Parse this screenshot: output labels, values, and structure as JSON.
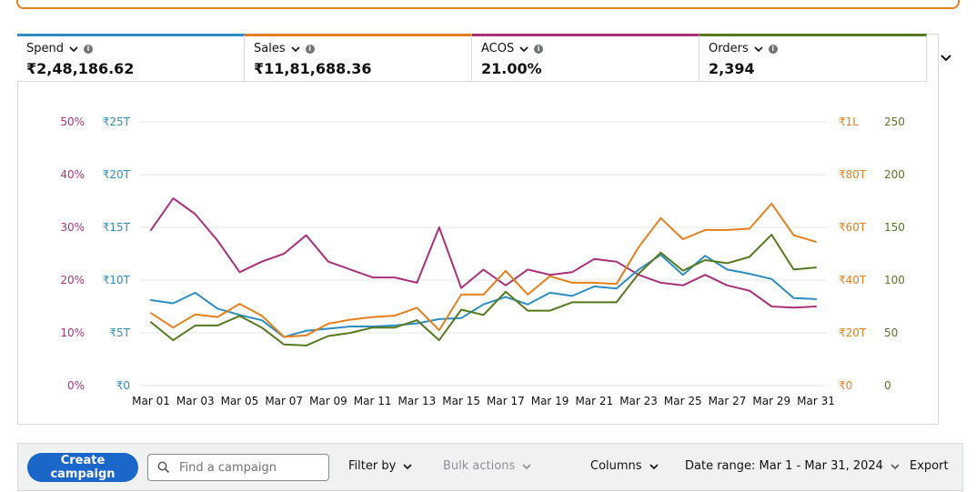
{
  "metrics": [
    {
      "label": "Spend",
      "value": "₹2,48,186.62",
      "color": "#2e8cbf"
    },
    {
      "label": "Sales",
      "value": "₹11,81,688.36",
      "color": "#e37f1e"
    },
    {
      "label": "ACOS",
      "value": "21.00%",
      "color": "#a9317a"
    },
    {
      "label": "Orders",
      "value": "2,394",
      "color": "#56781f"
    }
  ],
  "chart_data": {
    "type": "line",
    "x": [
      "Mar 01",
      "Mar 02",
      "Mar 03",
      "Mar 04",
      "Mar 05",
      "Mar 06",
      "Mar 07",
      "Mar 08",
      "Mar 09",
      "Mar 10",
      "Mar 11",
      "Mar 12",
      "Mar 13",
      "Mar 14",
      "Mar 15",
      "Mar 16",
      "Mar 17",
      "Mar 18",
      "Mar 19",
      "Mar 20",
      "Mar 21",
      "Mar 22",
      "Mar 23",
      "Mar 24",
      "Mar 25",
      "Mar 26",
      "Mar 27",
      "Mar 28",
      "Mar 29",
      "Mar 30",
      "Mar 31"
    ],
    "x_tick_labels": [
      "Mar 01",
      "Mar 03",
      "Mar 05",
      "Mar 07",
      "Mar 09",
      "Mar 11",
      "Mar 13",
      "Mar 15",
      "Mar 17",
      "Mar 19",
      "Mar 21",
      "Mar 23",
      "Mar 25",
      "Mar 27",
      "Mar 29",
      "Mar 31"
    ],
    "axes": {
      "acos": {
        "ticks": [
          "0%",
          "10%",
          "20%",
          "30%",
          "40%",
          "50%"
        ],
        "range": [
          0,
          50
        ],
        "color": "#a9317a"
      },
      "spend": {
        "ticks": [
          "₹0",
          "₹5T",
          "₹10T",
          "₹15T",
          "₹20T",
          "₹25T"
        ],
        "range": [
          0,
          25
        ],
        "color": "#2e8cbf"
      },
      "sales": {
        "ticks": [
          "₹0",
          "₹20T",
          "₹40T",
          "₹60T",
          "₹80T",
          "₹1L"
        ],
        "range": [
          0,
          100
        ],
        "color": "#e37f1e"
      },
      "orders": {
        "ticks": [
          "0",
          "50",
          "100",
          "150",
          "200",
          "250"
        ],
        "range": [
          0,
          250
        ],
        "color": "#56781f"
      }
    },
    "series": [
      {
        "name": "ACOS",
        "axis": "acos",
        "color": "#a9317a",
        "values": [
          29.5,
          35.5,
          32.5,
          27.5,
          21.5,
          23.5,
          25,
          28.5,
          23.5,
          22,
          20.5,
          20.5,
          19.5,
          30,
          18.5,
          22,
          19,
          22,
          21,
          21.5,
          24,
          23.5,
          21,
          19.5,
          19,
          21,
          19,
          18,
          15,
          14.8,
          15
        ]
      },
      {
        "name": "Spend",
        "axis": "spend",
        "color": "#2e8cbf",
        "values": [
          8.1,
          7.8,
          8.8,
          7.3,
          6.7,
          6.2,
          4.6,
          5.2,
          5.4,
          5.6,
          5.6,
          5.7,
          5.9,
          6.3,
          6.4,
          7.7,
          8.4,
          7.7,
          8.8,
          8.5,
          9.4,
          9.2,
          11.0,
          12.4,
          10.5,
          12.3,
          11.0,
          10.6,
          10.1,
          8.3,
          8.2
        ]
      },
      {
        "name": "Sales",
        "axis": "sales",
        "color": "#e37f1e",
        "values": [
          27.5,
          22,
          27,
          26,
          31,
          26.5,
          18.5,
          19,
          23.5,
          25,
          26,
          26.5,
          29.5,
          21,
          34.5,
          34.5,
          43.5,
          34.5,
          41.5,
          39,
          39,
          38.5,
          52.5,
          63.5,
          55.5,
          59,
          59,
          59.5,
          69,
          57,
          54.5
        ]
      },
      {
        "name": "Orders",
        "axis": "orders",
        "color": "#56781f",
        "values": [
          60,
          43,
          57,
          57,
          66,
          55,
          39,
          38,
          47,
          50,
          55,
          55,
          62,
          43,
          72,
          67,
          89,
          71,
          71,
          79,
          79,
          79,
          106,
          126,
          109,
          119,
          116,
          122,
          143,
          110,
          112
        ]
      }
    ],
    "grid": true
  },
  "toolbar": {
    "create_label": "Create campaign",
    "search_placeholder": "Find a campaign",
    "filter_label": "Filter by",
    "bulk_label": "Bulk actions",
    "columns_label": "Columns",
    "date_range_label": "Date range: Mar 1 - Mar 31, 2024",
    "export_label": "Export"
  },
  "icons": {
    "metric_chevron": "chevron-down-icon",
    "info": "info-icon",
    "expand": "chevron-down-icon",
    "search": "search-icon"
  }
}
